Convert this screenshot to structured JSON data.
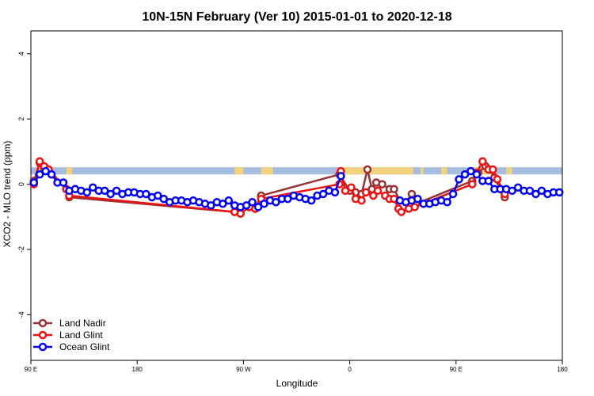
{
  "chart_data": {
    "type": "line",
    "title": "10N-15N February (Ver 10)   2015-01-01 to 2020-12-18",
    "xlabel": "Longitude",
    "ylabel": "XCO2 - MLO trend (ppm)",
    "xlim": [
      90,
      270
    ],
    "ylim": [
      -5.4,
      4.7
    ],
    "x_ticks": [
      {
        "value": 90,
        "label": "90 E"
      },
      {
        "value": 126,
        "label": "180"
      },
      {
        "value": 162,
        "label": "90 W"
      },
      {
        "value": 198,
        "label": "0"
      },
      {
        "value": 234,
        "label": "90 E"
      },
      {
        "value": 270,
        "label": "180"
      }
    ],
    "y_ticks": [
      -4,
      -2,
      0,
      2,
      4
    ],
    "grid": false,
    "legend_position": "bottom-left",
    "land_strip": {
      "y_bottom": 0.3,
      "y_top": 0.52,
      "ocean_color": "#a6bddf",
      "land_color": "#f2d27c",
      "land_spans": [
        [
          92.5,
          94.5
        ],
        [
          102.0,
          104.0
        ],
        [
          159.0,
          162.0
        ],
        [
          168.0,
          172.0
        ],
        [
          194.5,
          219.5
        ],
        [
          222.0,
          223.0
        ],
        [
          229.0,
          231.0
        ],
        [
          240.0,
          247.5
        ],
        [
          251.0,
          253.0
        ]
      ]
    },
    "series": [
      {
        "name": "Land Nadir",
        "color": "#993333",
        "x": [
          91.0,
          93.0,
          94.5,
          96.0,
          102.0,
          103.0,
          159.0,
          161.0,
          164.0,
          166.0,
          168.0,
          194.5,
          198.0,
          200.0,
          202.0,
          204.0,
          205.5,
          207.0,
          209.0,
          211.5,
          213.0,
          215.0,
          217.0,
          219.0,
          220.5,
          239.5,
          241.5,
          244.0,
          245.5,
          247.0,
          249.0,
          250.5
        ],
        "y": [
          0.1,
          0.65,
          0.5,
          0.45,
          -0.15,
          -0.4,
          -0.85,
          -0.9,
          -0.7,
          -0.75,
          -0.35,
          0.3,
          -0.2,
          -0.25,
          -0.3,
          0.45,
          -0.15,
          0.05,
          0.0,
          -0.15,
          -0.15,
          -0.5,
          -0.55,
          -0.3,
          -0.6,
          0.1,
          0.35,
          0.55,
          0.45,
          0.2,
          -0.15,
          -0.4
        ]
      },
      {
        "name": "Land Glint",
        "color": "#ee1111",
        "x": [
          91.0,
          93.0,
          94.5,
          96.0,
          102.0,
          103.0,
          159.0,
          161.0,
          164.0,
          166.0,
          168.0,
          194.5,
          195.0,
          196.5,
          198.5,
          200.0,
          202.0,
          203.5,
          206.0,
          207.5,
          210.0,
          211.5,
          213.0,
          214.5,
          215.5,
          218.0,
          220.0,
          239.5,
          241.0,
          243.0,
          245.0,
          246.5,
          248.0,
          250.5
        ],
        "y": [
          0.0,
          0.7,
          0.55,
          0.45,
          -0.15,
          -0.35,
          -0.85,
          -0.9,
          -0.7,
          -0.75,
          -0.45,
          0.0,
          0.4,
          -0.2,
          -0.1,
          -0.45,
          -0.5,
          -0.25,
          -0.35,
          -0.2,
          -0.35,
          -0.45,
          -0.45,
          -0.75,
          -0.85,
          -0.75,
          -0.7,
          0.0,
          0.35,
          0.7,
          0.45,
          0.45,
          0.15,
          -0.3
        ]
      },
      {
        "name": "Ocean Glint",
        "color": "#0000ee",
        "x": [
          91,
          93,
          95,
          97,
          99,
          101,
          103,
          105,
          107,
          109,
          111,
          113,
          115,
          117,
          119,
          121,
          123,
          125,
          127,
          129,
          131,
          133,
          135,
          137,
          139,
          141,
          143,
          145,
          147,
          149,
          151,
          153,
          155,
          157,
          159,
          161,
          163,
          165,
          167,
          169,
          171,
          173,
          175,
          177,
          179,
          181,
          183,
          185,
          187,
          189,
          191,
          193,
          195,
          215,
          217,
          219,
          221,
          223,
          225,
          227,
          229,
          231,
          233,
          235,
          237,
          239,
          241,
          243,
          245,
          247,
          249,
          251,
          253,
          255,
          257,
          259,
          261,
          263,
          265,
          267,
          269
        ],
        "y": [
          0.05,
          0.3,
          0.4,
          0.3,
          0.05,
          0.05,
          -0.2,
          -0.15,
          -0.2,
          -0.25,
          -0.1,
          -0.2,
          -0.2,
          -0.3,
          -0.2,
          -0.3,
          -0.25,
          -0.25,
          -0.3,
          -0.3,
          -0.4,
          -0.35,
          -0.45,
          -0.55,
          -0.5,
          -0.5,
          -0.55,
          -0.5,
          -0.55,
          -0.6,
          -0.65,
          -0.55,
          -0.6,
          -0.5,
          -0.65,
          -0.7,
          -0.65,
          -0.55,
          -0.7,
          -0.6,
          -0.5,
          -0.55,
          -0.45,
          -0.45,
          -0.35,
          -0.4,
          -0.45,
          -0.5,
          -0.35,
          -0.3,
          -0.2,
          -0.25,
          0.25,
          -0.5,
          -0.55,
          -0.5,
          -0.45,
          -0.6,
          -0.6,
          -0.55,
          -0.5,
          -0.55,
          -0.3,
          0.15,
          0.3,
          0.4,
          0.3,
          0.1,
          0.1,
          -0.15,
          -0.15,
          -0.15,
          -0.2,
          -0.1,
          -0.2,
          -0.2,
          -0.3,
          -0.2,
          -0.3,
          -0.25,
          -0.25
        ]
      }
    ],
    "series_breaks": {
      "Ocean Glint": [
        53
      ]
    }
  }
}
